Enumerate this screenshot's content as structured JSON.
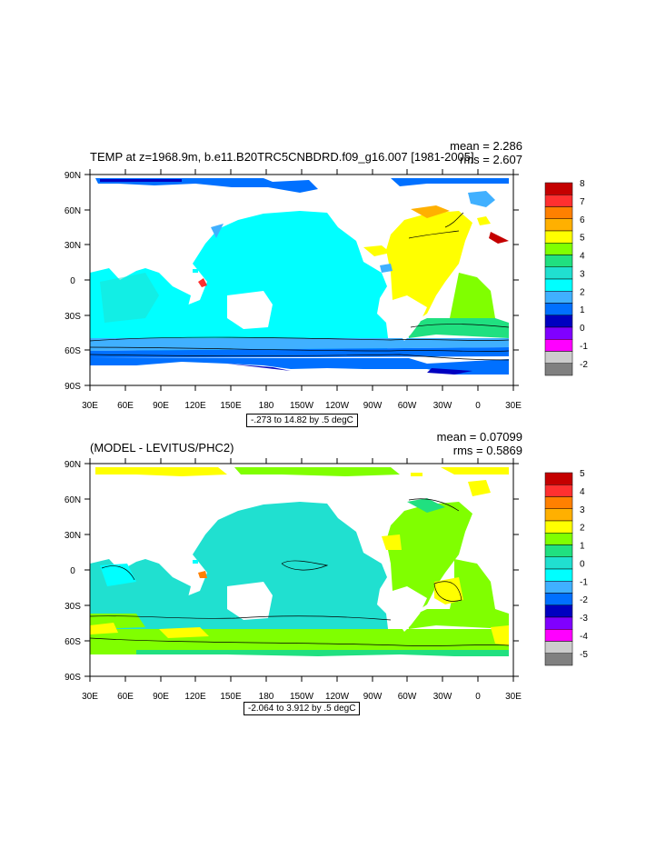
{
  "panels": [
    {
      "title": "TEMP at z=1968.9m, b.e11.B20TRC5CNBDRD.f09_g16.007 [1981-2005]",
      "mean": "mean = 2.286",
      "rms": "rms = 2.607",
      "range": "-.273 to 14.82 by .5 degC",
      "lat_labels": [
        "90N",
        "60N",
        "30N",
        "0",
        "30S",
        "60S",
        "90S"
      ],
      "lon_labels": [
        "30E",
        "60E",
        "90E",
        "120E",
        "150E",
        "180",
        "150W",
        "120W",
        "90W",
        "60W",
        "30W",
        "0",
        "30E"
      ],
      "colorbar_labels": [
        "8",
        "7",
        "6",
        "5",
        "4",
        "3",
        "2",
        "1",
        "0",
        "-1",
        "-2"
      ],
      "colorbar_colors": [
        "#c40000",
        "#ff3030",
        "#ff8000",
        "#ffb000",
        "#ffff00",
        "#80ff00",
        "#20e080",
        "#20e0d0",
        "#00ffff",
        "#40b0ff",
        "#0070ff",
        "#0000c0",
        "#8000ff",
        "#ff00ff",
        "#cccccc",
        "#808080"
      ]
    },
    {
      "title": "(MODEL - LEVITUS/PHC2)",
      "mean": "mean = 0.07099",
      "rms": "rms = 0.5869",
      "range": "-2.064 to 3.912 by .5 degC",
      "lat_labels": [
        "90N",
        "60N",
        "30N",
        "0",
        "30S",
        "60S",
        "90S"
      ],
      "lon_labels": [
        "30E",
        "60E",
        "90E",
        "120E",
        "150E",
        "180",
        "150W",
        "120W",
        "90W",
        "60W",
        "30W",
        "0",
        "30E"
      ],
      "colorbar_labels": [
        "5",
        "4",
        "3",
        "2",
        "1",
        "0",
        "-1",
        "-2",
        "-3",
        "-4",
        "-5"
      ],
      "colorbar_colors": [
        "#c40000",
        "#ff3030",
        "#ff8000",
        "#ffb000",
        "#ffff00",
        "#80ff00",
        "#20e080",
        "#20e0d0",
        "#00ffff",
        "#40b0ff",
        "#0070ff",
        "#0000c0",
        "#8000ff",
        "#ff00ff",
        "#cccccc",
        "#808080"
      ]
    }
  ]
}
